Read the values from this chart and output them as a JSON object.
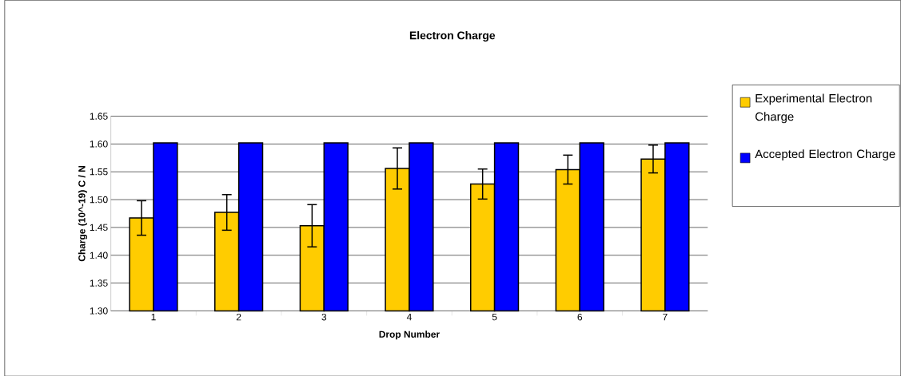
{
  "chart_data": {
    "type": "bar",
    "title": "Electron Charge",
    "xlabel": "Drop Number",
    "ylabel": "Charge (10^-19) C / N",
    "categories": [
      "1",
      "2",
      "3",
      "4",
      "5",
      "6",
      "7"
    ],
    "series": [
      {
        "name": "Experimental Electron Charge",
        "color": "#ffcc00",
        "values": [
          1.467,
          1.477,
          1.453,
          1.556,
          1.528,
          1.554,
          1.573
        ],
        "errors": [
          0.031,
          0.032,
          0.038,
          0.037,
          0.027,
          0.026,
          0.025
        ]
      },
      {
        "name": "Accepted Electron Charge",
        "color": "#0000ff",
        "values": [
          1.602,
          1.602,
          1.602,
          1.602,
          1.602,
          1.602,
          1.602
        ]
      }
    ],
    "ylim": [
      1.3,
      1.65
    ],
    "yticks": [
      {
        "value": 1.3,
        "label": "1.30"
      },
      {
        "value": 1.35,
        "label": "1.35"
      },
      {
        "value": 1.4,
        "label": "1.40"
      },
      {
        "value": 1.45,
        "label": "1.45"
      },
      {
        "value": 1.5,
        "label": "1.50"
      },
      {
        "value": 1.55,
        "label": "1.55"
      },
      {
        "value": 1.6,
        "label": "1.60"
      },
      {
        "value": 1.65,
        "label": "1.65"
      }
    ],
    "grid": "y",
    "legend": "right"
  }
}
